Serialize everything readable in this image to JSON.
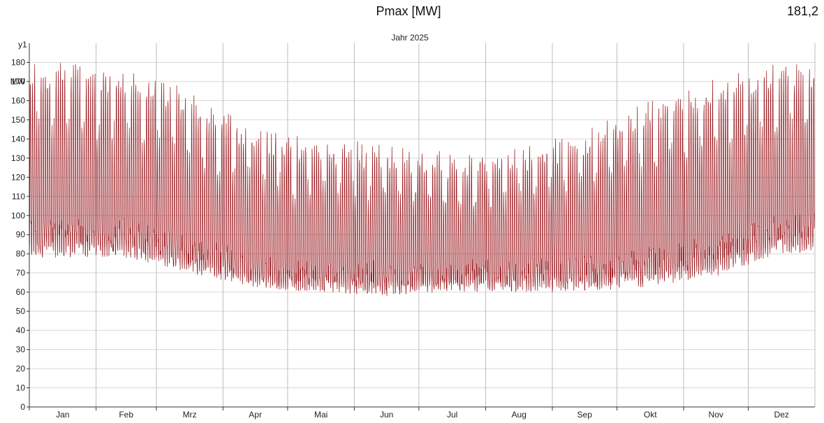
{
  "header": {
    "title": "Pmax [MW]",
    "max_value": "181,2"
  },
  "chart_data": {
    "type": "line",
    "title": "Jahr 2025",
    "y_axis_name": "y1",
    "y_unit": "MW",
    "ylim": [
      0,
      190
    ],
    "yticks": [
      0,
      10,
      20,
      30,
      40,
      50,
      60,
      70,
      80,
      90,
      100,
      110,
      120,
      130,
      140,
      150,
      160,
      170,
      180
    ],
    "months": [
      "Jan",
      "Feb",
      "Mrz",
      "Apr",
      "Mai",
      "Jun",
      "Jul",
      "Aug",
      "Sep",
      "Okt",
      "Nov",
      "Dez"
    ],
    "grid": true,
    "series_color": "#9b1c22",
    "sampling": "hourly",
    "series": [
      {
        "name": "",
        "monthly_profile": [
          {
            "month": "Jan",
            "daily_min": 78,
            "daily_max": 176,
            "weekend_max": 150
          },
          {
            "month": "Feb",
            "daily_min": 78,
            "daily_max": 172,
            "weekend_max": 145
          },
          {
            "month": "Mrz",
            "daily_min": 70,
            "daily_max": 162,
            "weekend_max": 135
          },
          {
            "month": "Apr",
            "daily_min": 62,
            "daily_max": 140,
            "weekend_max": 120
          },
          {
            "month": "Mai",
            "daily_min": 60,
            "daily_max": 137,
            "weekend_max": 115
          },
          {
            "month": "Jun",
            "daily_min": 58,
            "daily_max": 132,
            "weekend_max": 112
          },
          {
            "month": "Jul",
            "daily_min": 60,
            "daily_max": 128,
            "weekend_max": 112
          },
          {
            "month": "Aug",
            "daily_min": 60,
            "daily_max": 130,
            "weekend_max": 112
          },
          {
            "month": "Sep",
            "daily_min": 60,
            "daily_max": 140,
            "weekend_max": 118
          },
          {
            "month": "Okt",
            "daily_min": 63,
            "daily_max": 156,
            "weekend_max": 130
          },
          {
            "month": "Nov",
            "daily_min": 68,
            "daily_max": 168,
            "weekend_max": 142
          },
          {
            "month": "Dez",
            "daily_min": 80,
            "daily_max": 176,
            "weekend_max": 150
          }
        ],
        "peak": 181.2,
        "minimum": 55
      }
    ]
  }
}
